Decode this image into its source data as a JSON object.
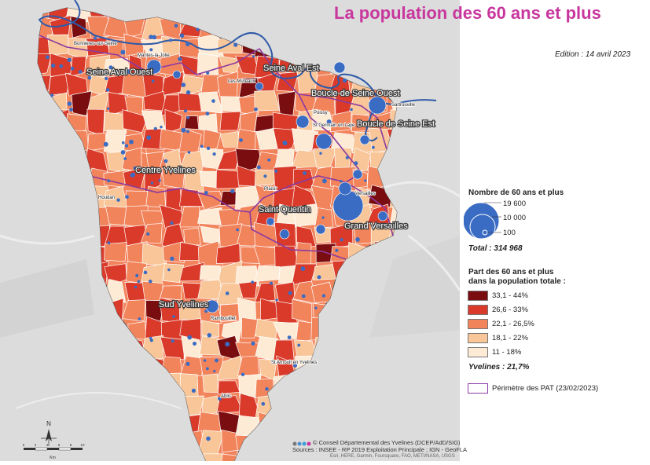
{
  "title": "La population des 60 ans et plus",
  "edition": "Edition : 14 avril 2023",
  "legend": {
    "size_title": "Nombre de 60 ans et plus",
    "size_values": [
      "19 600",
      "10 000",
      "100"
    ],
    "total": "Total : 314 968",
    "share_title_line1": "Part des 60 ans et plus",
    "share_title_line2": "dans la population totale :",
    "classes": [
      {
        "label": "33,1 - 44%",
        "color": "#7a0d10"
      },
      {
        "label": "26,6 - 33%",
        "color": "#d93a2a"
      },
      {
        "label": "22,1 - 26,5%",
        "color": "#f2845c"
      },
      {
        "label": "18,1 - 22%",
        "color": "#f8c698"
      },
      {
        "label": "11 - 18%",
        "color": "#fdebd6"
      }
    ],
    "average": "Yvelines : 21,7%",
    "pat_perimeter": "Périmètre des PAT (23/02/2023)",
    "pat_color": "#8b3aa0"
  },
  "territories": [
    "Seine Aval Ouest",
    "Seine Aval Est",
    "Boucle de Seine Ouest",
    "Boucle de Seine Est",
    "Centre Yvelines",
    "Saint Quentin",
    "Grand Versailles",
    "Sud Yvelines"
  ],
  "towns": [
    "Bonnières-sur-Seine",
    "Mantes-la-Jolie",
    "Les Mureaux",
    "Poissy",
    "Sartrouville",
    "St Germain en Laye",
    "Versailles",
    "Plaisir",
    "Houdan",
    "Rambouillet",
    "St Arnoult en Yvelines",
    "Ablis"
  ],
  "credits": {
    "line1": "© Conseil Départemental des Yvelines (DCEP/AdD/SIG)",
    "line2": "Sources : INSEE - RP 2019 Exploitation Principale ; IGN - GeoFLA",
    "line3": "Esri, HERE, Garmin, Foursquare, FAO, METI/NASA, USGS"
  },
  "north_arrow": "N",
  "scale": {
    "ticks": [
      "0",
      "2",
      "4",
      "6",
      "8",
      "10"
    ],
    "unit": "Km"
  }
}
